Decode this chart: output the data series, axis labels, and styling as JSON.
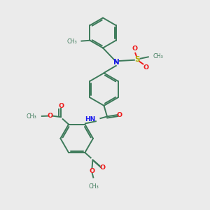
{
  "bg_color": "#ebebeb",
  "bond_color": "#3d7a5a",
  "N_color": "#1a1aee",
  "O_color": "#ee1a1a",
  "S_color": "#b0b000",
  "lw": 1.4,
  "fig_w": 3.0,
  "fig_h": 3.0,
  "dpi": 100,
  "xlim": [
    0,
    10
  ],
  "ylim": [
    0,
    10
  ]
}
